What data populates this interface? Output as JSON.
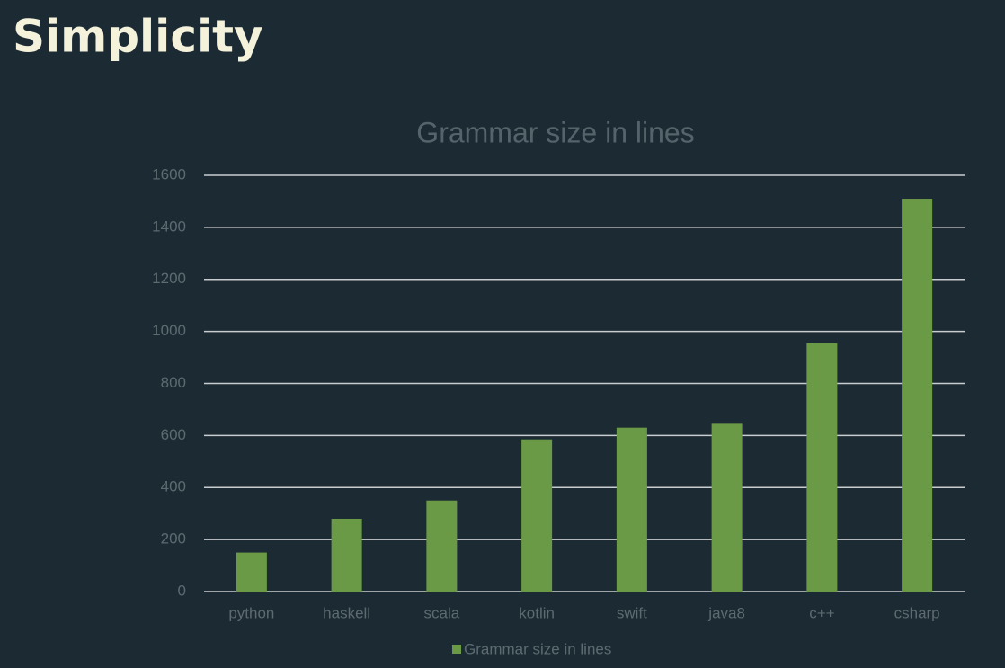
{
  "heading": "Simplicity",
  "chart_data": {
    "type": "bar",
    "title": "Grammar size in lines",
    "categories": [
      "python",
      "haskell",
      "scala",
      "kotlin",
      "swift",
      "java8",
      "c++",
      "csharp"
    ],
    "series": [
      {
        "name": "Grammar size in lines",
        "color": "#6b9a47",
        "values": [
          150,
          280,
          350,
          585,
          630,
          645,
          955,
          1510
        ]
      }
    ],
    "ylim": [
      0,
      1600
    ],
    "yticks": [
      0,
      200,
      400,
      600,
      800,
      1000,
      1200,
      1400,
      1600
    ],
    "grid": true,
    "legend": "bottom"
  }
}
